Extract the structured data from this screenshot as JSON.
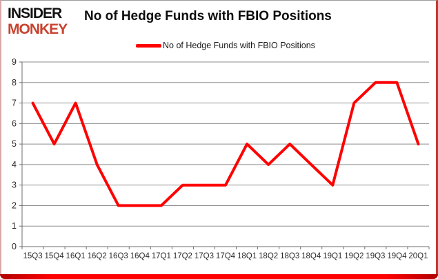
{
  "brand": {
    "line1": "INSIDER",
    "line2": "MONKEY"
  },
  "header": {
    "title": "No of Hedge Funds with FBIO Positions"
  },
  "legend": {
    "label": "No of Hedge Funds with FBIO Positions"
  },
  "colors": {
    "series": "#ff0000",
    "gridline": "#8e8e8e",
    "axis": "#6e6e6e",
    "tick_text": "#2b2b2b",
    "brand_red": "#c8432f",
    "frame_bottom": "#ff0000"
  },
  "chart_data": {
    "type": "line",
    "title": "No of Hedge Funds with FBIO Positions",
    "categories": [
      "15Q3",
      "15Q4",
      "16Q1",
      "16Q2",
      "16Q3",
      "16Q4",
      "17Q1",
      "17Q2",
      "17Q3",
      "17Q4",
      "18Q1",
      "18Q2",
      "18Q3",
      "18Q4",
      "19Q1",
      "19Q2",
      "19Q3",
      "19Q4",
      "20Q1"
    ],
    "series": [
      {
        "name": "No of Hedge Funds with FBIO Positions",
        "color": "#ff0000",
        "values": [
          7,
          5,
          7,
          4,
          2,
          2,
          2,
          3,
          3,
          3,
          5,
          4,
          5,
          4,
          3,
          7,
          8,
          8,
          5
        ]
      }
    ],
    "xlabel": "",
    "ylabel": "",
    "ylim": [
      0,
      9
    ],
    "ytick_interval": 1,
    "grid": true,
    "legend_position": "top"
  }
}
